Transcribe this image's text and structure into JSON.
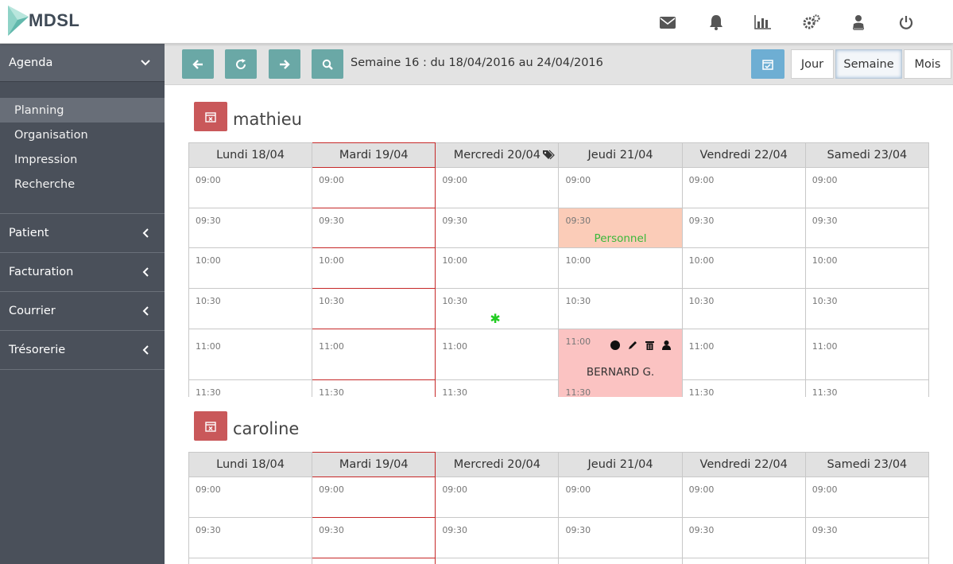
{
  "app": {
    "logo_text": "MDSL"
  },
  "topbar": {
    "icons": [
      "envelope-icon",
      "bell-icon",
      "bar-chart-icon",
      "gears-icon",
      "user-tie-icon",
      "power-icon"
    ]
  },
  "sidebar": {
    "header": "Agenda",
    "subitems": [
      "Planning",
      "Organisation",
      "Impression",
      "Recherche"
    ],
    "active_subitem": "Planning",
    "sections": [
      "Patient",
      "Facturation",
      "Courrier",
      "Trésorerie"
    ]
  },
  "toolbar": {
    "week_text": "Semaine 16 : du 18/04/2016 au 24/04/2016",
    "views": [
      "Jour",
      "Semaine",
      "Mois"
    ],
    "active_view": "Semaine"
  },
  "colors": {
    "teal": "#6aa8a6",
    "blue": "#6eaed3",
    "red_icon": "#c9585a",
    "today_border": "#c62828",
    "personnel_bg": "#fbccb8",
    "patient_bg": "#fbc3c2",
    "sidebar_bg": "#4a505a"
  },
  "calendars": [
    {
      "name": "mathieu",
      "days": [
        "Lundi 18/04",
        "Mardi 19/04",
        "Mercredi 20/04",
        "Jeudi 21/04",
        "Vendredi 22/04",
        "Samedi 23/04"
      ],
      "slots": [
        "09:00",
        "09:30",
        "10:00",
        "10:30",
        "11:00",
        "11:30"
      ],
      "events": {
        "personnel_label": "Personnel",
        "patient_name": "BERNARD G."
      }
    },
    {
      "name": "caroline",
      "days": [
        "Lundi 18/04",
        "Mardi 19/04",
        "Mercredi 20/04",
        "Jeudi 21/04",
        "Vendredi 22/04",
        "Samedi 23/04"
      ],
      "slots": [
        "09:00",
        "09:30"
      ]
    }
  ]
}
